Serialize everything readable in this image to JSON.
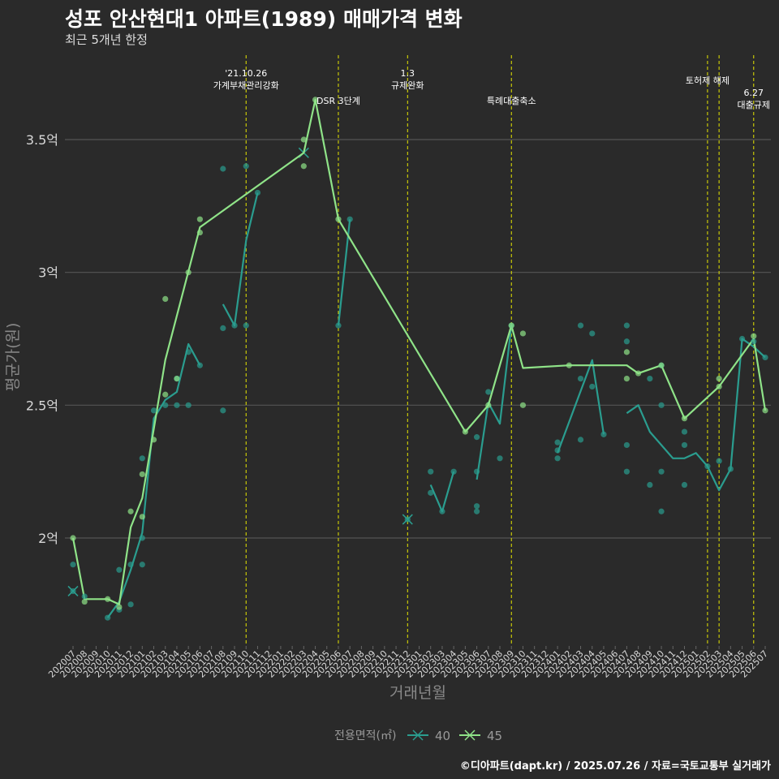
{
  "header": {
    "title": "성포 안산현대1 아파트(1989) 매매가격 변화",
    "subtitle": "최근 5개년 한정"
  },
  "caption": "©디아파트(dapt.kr) / 2025.07.26 / 자료=국토교통부 실거래가",
  "colors": {
    "background": "#2a2a2a",
    "series_40": "#2a9d8f",
    "series_45": "#8fe388",
    "event_line": "#e6e600",
    "grid": "#555555"
  },
  "chart_data": {
    "type": "line",
    "xlabel": "거래년월",
    "ylabel": "평균가(원)",
    "ylim": [
      1.6,
      3.8
    ],
    "y_ticks": [
      {
        "value": 2.0,
        "label": "2억"
      },
      {
        "value": 2.5,
        "label": "2.5억"
      },
      {
        "value": 3.0,
        "label": "3억"
      },
      {
        "value": 3.5,
        "label": "3.5억"
      }
    ],
    "x_categories": [
      "202007",
      "202008",
      "202009",
      "202010",
      "202011",
      "202012",
      "202101",
      "202102",
      "202103",
      "202104",
      "202105",
      "202106",
      "202107",
      "202108",
      "202109",
      "202110",
      "202111",
      "202112",
      "202201",
      "202202",
      "202203",
      "202204",
      "202205",
      "202206",
      "202207",
      "202208",
      "202209",
      "202210",
      "202211",
      "202212",
      "202301",
      "202302",
      "202303",
      "202304",
      "202305",
      "202306",
      "202307",
      "202308",
      "202309",
      "202310",
      "202311",
      "202312",
      "202401",
      "202402",
      "202403",
      "202404",
      "202405",
      "202406",
      "202407",
      "202408",
      "202409",
      "202410",
      "202411",
      "202412",
      "202501",
      "202502",
      "202503",
      "202504",
      "202505",
      "202506",
      "202507"
    ],
    "legend": {
      "title": "전용면적(㎡)",
      "entries": [
        "40",
        "45"
      ]
    },
    "series": [
      {
        "name": "40",
        "color": "#2a9d8f",
        "line": [
          [
            [
              "202007",
              1.8
            ]
          ],
          [
            [
              "202010",
              1.7
            ],
            [
              "202011",
              1.76
            ],
            [
              "202012",
              1.88
            ],
            [
              "202101",
              2.02
            ],
            [
              "202102",
              2.45
            ],
            [
              "202103",
              2.52
            ],
            [
              "202104",
              2.55
            ],
            [
              "202105",
              2.73
            ],
            [
              "202106",
              2.65
            ]
          ],
          [
            [
              "202108",
              2.88
            ],
            [
              "202109",
              2.8
            ],
            [
              "202110",
              3.12
            ],
            [
              "202111",
              3.3
            ]
          ],
          [
            [
              "202203",
              3.45
            ]
          ],
          [
            [
              "202206",
              2.8
            ],
            [
              "202207",
              3.2
            ]
          ],
          [
            [
              "202212",
              2.07
            ]
          ],
          [
            [
              "202302",
              2.2
            ],
            [
              "202303",
              2.1
            ],
            [
              "202304",
              2.25
            ]
          ],
          [
            [
              "202306",
              2.22
            ],
            [
              "202307",
              2.51
            ],
            [
              "202308",
              2.43
            ],
            [
              "202309",
              2.8
            ]
          ],
          [
            [
              "202401",
              2.32
            ],
            [
              "202404",
              2.67
            ],
            [
              "202405",
              2.39
            ]
          ],
          [
            [
              "202407",
              2.47
            ],
            [
              "202408",
              2.5
            ],
            [
              "202409",
              2.4
            ],
            [
              "202411",
              2.3
            ],
            [
              "202412",
              2.3
            ],
            [
              "202501",
              2.32
            ],
            [
              "202502",
              2.27
            ],
            [
              "202503",
              2.18
            ],
            [
              "202504",
              2.26
            ],
            [
              "202505",
              2.75
            ],
            [
              "202506",
              2.72
            ],
            [
              "202507",
              2.68
            ]
          ]
        ],
        "points": [
          [
            "202007",
            1.9
          ],
          [
            "202007",
            1.8
          ],
          [
            "202008",
            1.78
          ],
          [
            "202010",
            1.7
          ],
          [
            "202011",
            1.73
          ],
          [
            "202011",
            1.88
          ],
          [
            "202012",
            1.75
          ],
          [
            "202012",
            1.9
          ],
          [
            "202101",
            2.0
          ],
          [
            "202101",
            2.3
          ],
          [
            "202101",
            1.9
          ],
          [
            "202102",
            2.48
          ],
          [
            "202103",
            2.5
          ],
          [
            "202104",
            2.6
          ],
          [
            "202104",
            2.5
          ],
          [
            "202105",
            2.7
          ],
          [
            "202105",
            2.5
          ],
          [
            "202106",
            2.65
          ],
          [
            "202108",
            2.48
          ],
          [
            "202108",
            2.79
          ],
          [
            "202108",
            3.39
          ],
          [
            "202109",
            2.8
          ],
          [
            "202110",
            2.8
          ],
          [
            "202110",
            3.4
          ],
          [
            "202111",
            3.3
          ],
          [
            "202206",
            2.8
          ],
          [
            "202207",
            3.2
          ],
          [
            "202212",
            2.07
          ],
          [
            "202302",
            2.17
          ],
          [
            "202302",
            2.25
          ],
          [
            "202303",
            2.1
          ],
          [
            "202304",
            2.25
          ],
          [
            "202306",
            2.38
          ],
          [
            "202306",
            2.25
          ],
          [
            "202306",
            2.12
          ],
          [
            "202306",
            2.1
          ],
          [
            "202307",
            2.55
          ],
          [
            "202308",
            2.3
          ],
          [
            "202309",
            2.8
          ],
          [
            "202401",
            2.3
          ],
          [
            "202401",
            2.33
          ],
          [
            "202401",
            2.36
          ],
          [
            "202403",
            2.8
          ],
          [
            "202403",
            2.6
          ],
          [
            "202403",
            2.37
          ],
          [
            "202404",
            2.77
          ],
          [
            "202404",
            2.57
          ],
          [
            "202405",
            2.39
          ],
          [
            "202407",
            2.8
          ],
          [
            "202407",
            2.74
          ],
          [
            "202407",
            2.35
          ],
          [
            "202407",
            2.25
          ],
          [
            "202409",
            2.6
          ],
          [
            "202409",
            2.2
          ],
          [
            "202410",
            2.65
          ],
          [
            "202410",
            2.5
          ],
          [
            "202410",
            2.25
          ],
          [
            "202410",
            2.1
          ],
          [
            "202412",
            2.4
          ],
          [
            "202412",
            2.35
          ],
          [
            "202412",
            2.2
          ],
          [
            "202502",
            2.27
          ],
          [
            "202503",
            2.29
          ],
          [
            "202504",
            2.26
          ],
          [
            "202505",
            2.75
          ],
          [
            "202506",
            2.74
          ],
          [
            "202507",
            2.68
          ]
        ]
      },
      {
        "name": "45",
        "color": "#8fe388",
        "line": [
          [
            [
              "202007",
              2.0
            ],
            [
              "202008",
              1.77
            ],
            [
              "202010",
              1.77
            ],
            [
              "202011",
              1.75
            ],
            [
              "202012",
              2.04
            ],
            [
              "202101",
              2.15
            ],
            [
              "202103",
              2.67
            ],
            [
              "202106",
              3.17
            ],
            [
              "202203",
              3.45
            ],
            [
              "202204",
              3.65
            ],
            [
              "202206",
              3.2
            ],
            [
              "202305",
              2.4
            ],
            [
              "202307",
              2.5
            ],
            [
              "202309",
              2.8
            ],
            [
              "202310",
              2.64
            ],
            [
              "202402",
              2.65
            ],
            [
              "202407",
              2.65
            ],
            [
              "202408",
              2.62
            ],
            [
              "202410",
              2.65
            ],
            [
              "202412",
              2.45
            ],
            [
              "202503",
              2.57
            ],
            [
              "202506",
              2.75
            ],
            [
              "202507",
              2.48
            ]
          ]
        ],
        "points": [
          [
            "202007",
            2.0
          ],
          [
            "202008",
            1.76
          ],
          [
            "202010",
            1.77
          ],
          [
            "202011",
            1.74
          ],
          [
            "202012",
            2.1
          ],
          [
            "202101",
            2.24
          ],
          [
            "202101",
            2.08
          ],
          [
            "202102",
            2.37
          ],
          [
            "202103",
            2.9
          ],
          [
            "202103",
            2.54
          ],
          [
            "202104",
            2.6
          ],
          [
            "202105",
            3.0
          ],
          [
            "202106",
            3.2
          ],
          [
            "202106",
            3.15
          ],
          [
            "202203",
            3.5
          ],
          [
            "202203",
            3.4
          ],
          [
            "202204",
            3.65
          ],
          [
            "202206",
            3.2
          ],
          [
            "202305",
            2.4
          ],
          [
            "202307",
            2.5
          ],
          [
            "202309",
            2.8
          ],
          [
            "202310",
            2.77
          ],
          [
            "202310",
            2.5
          ],
          [
            "202402",
            2.65
          ],
          [
            "202407",
            2.7
          ],
          [
            "202407",
            2.6
          ],
          [
            "202408",
            2.62
          ],
          [
            "202410",
            2.65
          ],
          [
            "202412",
            2.45
          ],
          [
            "202503",
            2.6
          ],
          [
            "202503",
            2.57
          ],
          [
            "202506",
            2.76
          ],
          [
            "202507",
            2.48
          ]
        ]
      }
    ],
    "annotations": [
      {
        "x": "202110",
        "lines": [
          "'21.10.26",
          "가계부채관리강화"
        ],
        "level": 1
      },
      {
        "x": "202206",
        "lines": [
          "DSR 3단계"
        ],
        "level": 2
      },
      {
        "x": "202212",
        "lines": [
          "1.3",
          "규제완화"
        ],
        "level": 1
      },
      {
        "x": "202309",
        "lines": [
          "특례대출축소"
        ],
        "level": 2
      },
      {
        "x": "202502",
        "lines": [
          "토허제 해제"
        ],
        "level": 1.3
      },
      {
        "x": "202503",
        "lines": [],
        "level": 0
      },
      {
        "x": "202506",
        "lines": [
          "6.27",
          "대출규제"
        ],
        "level": 1.7
      }
    ]
  }
}
